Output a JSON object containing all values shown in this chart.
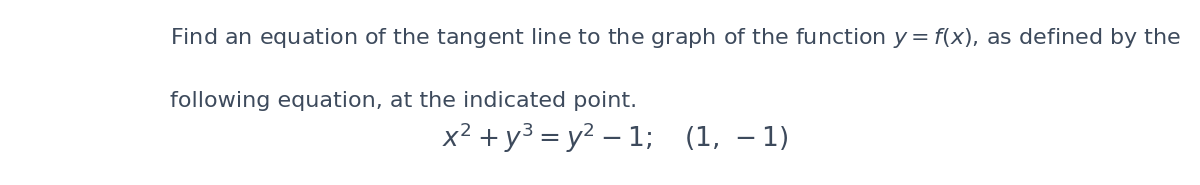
{
  "background_color": "#ffffff",
  "text_color": "#3d4a5c",
  "text_line1_parts": [
    {
      "text": "Find an equation of the tangent line to the graph of the function ",
      "math": false
    },
    {
      "text": "$y = f(x)$",
      "math": true
    },
    {
      "text": ", as defined by the",
      "math": false
    }
  ],
  "text_line2": "following equation, at the indicated point.",
  "math_line": "$x^2 + y^3 = y^2 - 1;\\quad (1,\\,-1)$",
  "text_fontsize": 16,
  "math_fontsize": 19,
  "figwidth": 12.0,
  "figheight": 1.85,
  "dpi": 100
}
